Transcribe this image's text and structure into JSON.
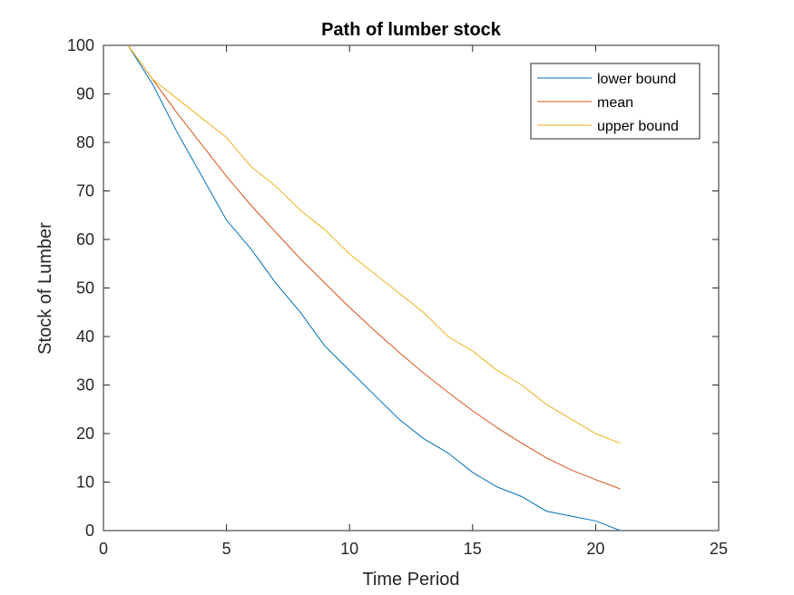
{
  "chart_data": {
    "type": "line",
    "title": "Path of lumber stock",
    "xlabel": "Time Period",
    "ylabel": "Stock of Lumber",
    "xlim": [
      0,
      25
    ],
    "ylim": [
      0,
      100
    ],
    "xticks": [
      0,
      5,
      10,
      15,
      20,
      25
    ],
    "yticks": [
      0,
      10,
      20,
      30,
      40,
      50,
      60,
      70,
      80,
      90,
      100
    ],
    "grid": false,
    "legend_position": "top-right",
    "x": [
      1,
      2,
      3,
      4,
      5,
      6,
      7,
      8,
      9,
      10,
      11,
      12,
      13,
      14,
      15,
      16,
      17,
      18,
      19,
      20,
      21
    ],
    "series": [
      {
        "name": "lower bound",
        "color": "#0072BD",
        "values": [
          100,
          92,
          82,
          73,
          64,
          58,
          51,
          45,
          38,
          33,
          28,
          23,
          19,
          16,
          12,
          9,
          7,
          4,
          3,
          2,
          0
        ]
      },
      {
        "name": "mean",
        "color": "#D95319",
        "values": [
          100,
          93,
          86,
          79.5,
          73,
          67,
          61.5,
          56,
          51,
          46,
          41.3,
          36.8,
          32.5,
          28.5,
          24.7,
          21.2,
          18,
          15,
          12.5,
          10.5,
          8.6
        ]
      },
      {
        "name": "upper bound",
        "color": "#EDB120",
        "values": [
          100,
          93,
          89,
          85,
          81,
          75,
          71,
          66,
          62,
          57,
          53,
          49,
          45,
          40,
          37,
          33,
          30,
          26,
          23,
          20,
          18
        ]
      }
    ]
  }
}
